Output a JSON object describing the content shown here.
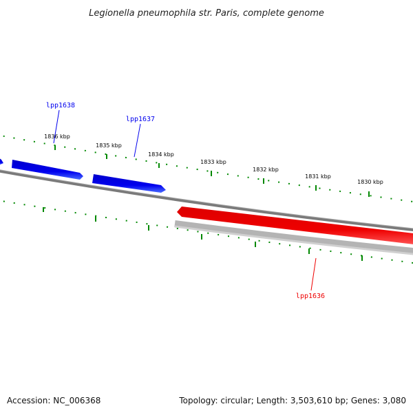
{
  "title": "Legionella pneumophila str. Paris, complete genome",
  "accession": "Accession: NC_006368",
  "summary": "Topology: circular; Length: 3,503,610 bp; Genes: 3,080",
  "ticks": [
    {
      "label": "1836 kbp"
    },
    {
      "label": "1835 kbp"
    },
    {
      "label": "1834 kbp"
    },
    {
      "label": "1833 kbp"
    },
    {
      "label": "1832 kbp"
    },
    {
      "label": "1831 kbp"
    },
    {
      "label": "1830 kbp"
    }
  ],
  "genes": [
    {
      "name": "lpp1638",
      "strand": "forward",
      "color": "#0000ee"
    },
    {
      "name": "lpp1637",
      "strand": "forward",
      "color": "#0000ee"
    },
    {
      "name": "lpp1636",
      "strand": "reverse",
      "color": "#ee0000"
    }
  ],
  "colors": {
    "forward_gene": "#0000ee",
    "reverse_gene": "#ee0000",
    "backbone": "#777777",
    "tick": "#008800",
    "reverse_track": "#b0b0b0"
  }
}
